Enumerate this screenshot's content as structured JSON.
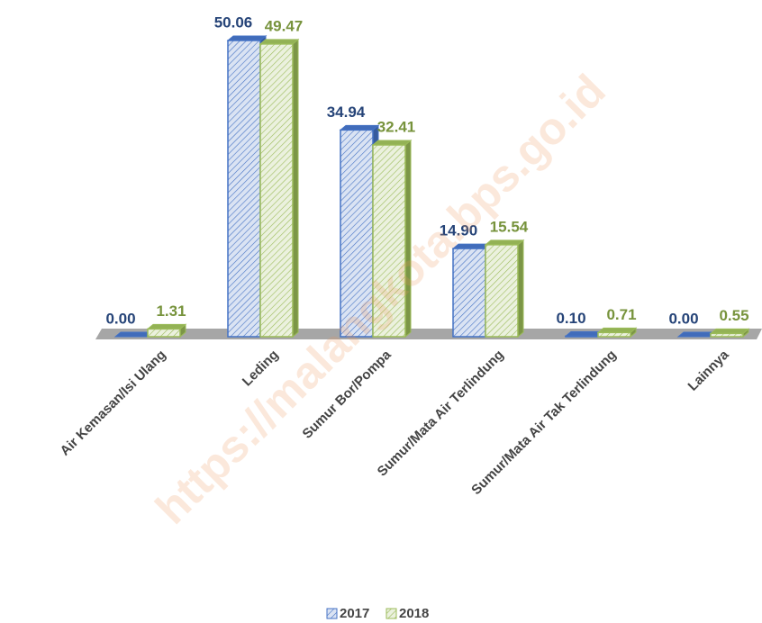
{
  "chart_data": {
    "type": "bar3d",
    "categories": [
      "Air Kemasan/Isi Ulang",
      "Leding",
      "Sumur Bor/Pompa",
      "Sumur/Mata Air Terlindung",
      "Sumur/Mata Air Tak Terlindung",
      "Lainnya"
    ],
    "series": [
      {
        "name": "2017",
        "color": "#4472c4",
        "label_color": "#264478",
        "values": [
          0,
          50.06,
          34.94,
          14.9,
          0.1,
          0
        ],
        "value_labels": [
          "0.00",
          "50.06",
          "34.94",
          "14.90",
          "0.10",
          "0.00"
        ]
      },
      {
        "name": "2018",
        "color": "#9bbb59",
        "label_color": "#77933c",
        "values": [
          1.31,
          49.47,
          32.41,
          15.54,
          0.71,
          0.55
        ],
        "value_labels": [
          "1.31",
          "49.47",
          "32.41",
          "15.54",
          "0.71",
          "0.55"
        ]
      }
    ],
    "legend": "bottom",
    "watermark": "https://malangkota.bps.go.id"
  }
}
